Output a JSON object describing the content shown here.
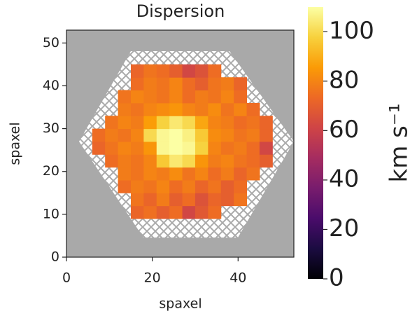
{
  "chart_data": {
    "type": "heatmap",
    "title": "Dispersion",
    "xlabel": "spaxel",
    "ylabel": "spaxel",
    "colorbar_label": "km s⁻¹",
    "colormap": "inferno",
    "clim": [
      0,
      110
    ],
    "cticks": [
      0,
      20,
      40,
      60,
      80,
      100
    ],
    "xlim": [
      0,
      53
    ],
    "ylim": [
      0,
      53
    ],
    "xticks": [
      0,
      20,
      40
    ],
    "yticks": [
      0,
      10,
      20,
      30,
      40,
      50
    ],
    "x": [
      1.5,
      4.5,
      7.5,
      10.5,
      13.5,
      16.5,
      19.5,
      22.5,
      25.5,
      28.5,
      31.5,
      34.5,
      37.5,
      40.5,
      43.5,
      46.5,
      49.5,
      52.5
    ],
    "y": [
      1.5,
      4.5,
      7.5,
      10.5,
      13.5,
      16.5,
      19.5,
      22.5,
      25.5,
      28.5,
      31.5,
      34.5,
      37.5,
      40.5,
      43.5,
      46.5,
      49.5,
      52.5
    ],
    "z": [
      [
        null,
        null,
        null,
        null,
        null,
        null,
        null,
        null,
        null,
        null,
        null,
        null,
        null,
        null,
        null,
        null,
        null,
        null
      ],
      [
        null,
        null,
        null,
        null,
        null,
        null,
        null,
        null,
        null,
        null,
        null,
        null,
        null,
        null,
        null,
        null,
        null,
        null
      ],
      [
        null,
        null,
        null,
        null,
        null,
        null,
        null,
        null,
        null,
        null,
        null,
        null,
        null,
        null,
        null,
        null,
        null,
        null
      ],
      [
        null,
        null,
        null,
        null,
        null,
        72,
        75,
        70,
        74,
        62,
        68,
        74,
        null,
        null,
        null,
        null,
        null,
        null
      ],
      [
        null,
        null,
        null,
        null,
        null,
        76,
        72,
        78,
        70,
        74,
        66,
        72,
        70,
        76,
        null,
        null,
        null,
        null
      ],
      [
        null,
        null,
        null,
        null,
        74,
        78,
        76,
        80,
        74,
        78,
        72,
        76,
        70,
        74,
        null,
        null,
        null,
        null
      ],
      [
        null,
        null,
        null,
        null,
        78,
        76,
        80,
        78,
        82,
        76,
        80,
        74,
        78,
        72,
        76,
        null,
        null,
        null
      ],
      [
        null,
        null,
        null,
        74,
        78,
        76,
        80,
        96,
        104,
        100,
        84,
        78,
        80,
        76,
        74,
        70,
        null,
        null
      ],
      [
        null,
        null,
        72,
        76,
        80,
        78,
        84,
        108,
        110,
        108,
        98,
        80,
        76,
        78,
        74,
        62,
        null,
        null
      ],
      [
        null,
        null,
        74,
        78,
        76,
        80,
        100,
        108,
        110,
        106,
        96,
        82,
        80,
        76,
        78,
        72,
        null,
        null
      ],
      [
        null,
        null,
        null,
        76,
        80,
        78,
        86,
        98,
        104,
        100,
        88,
        80,
        78,
        74,
        76,
        72,
        null,
        null
      ],
      [
        null,
        null,
        null,
        null,
        78,
        76,
        80,
        82,
        84,
        80,
        78,
        82,
        76,
        80,
        74,
        null,
        null,
        null
      ],
      [
        null,
        null,
        null,
        null,
        76,
        80,
        78,
        76,
        80,
        74,
        78,
        76,
        80,
        74,
        null,
        null,
        null,
        null
      ],
      [
        null,
        null,
        null,
        null,
        null,
        74,
        78,
        76,
        80,
        74,
        70,
        76,
        78,
        72,
        null,
        null,
        null,
        null
      ],
      [
        null,
        null,
        null,
        null,
        null,
        72,
        76,
        74,
        70,
        62,
        66,
        74,
        null,
        null,
        null,
        null,
        null,
        null
      ],
      [
        null,
        null,
        null,
        null,
        null,
        null,
        null,
        null,
        null,
        null,
        null,
        null,
        null,
        null,
        null,
        null,
        null,
        null
      ],
      [
        null,
        null,
        null,
        null,
        null,
        null,
        null,
        null,
        null,
        null,
        null,
        null,
        null,
        null,
        null,
        null,
        null,
        null
      ],
      [
        null,
        null,
        null,
        null,
        null,
        null,
        null,
        null,
        null,
        null,
        null,
        null,
        null,
        null,
        null,
        null,
        null,
        null
      ]
    ]
  }
}
